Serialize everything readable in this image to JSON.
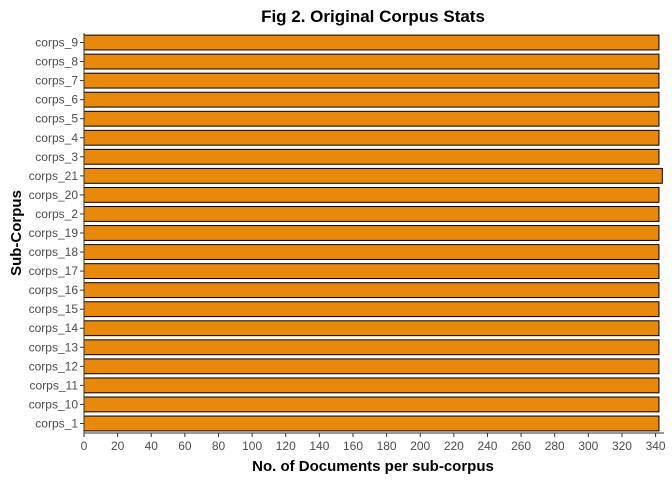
{
  "chart_data": {
    "type": "bar",
    "orientation": "horizontal",
    "title": "Fig 2. Original Corpus Stats",
    "xlabel": "No. of Documents per sub-corpus",
    "ylabel": "Sub-Corpus",
    "xlim": [
      0,
      345
    ],
    "xticks": [
      0,
      20,
      40,
      60,
      80,
      100,
      120,
      140,
      160,
      180,
      200,
      220,
      240,
      260,
      280,
      300,
      320,
      340
    ],
    "categories": [
      "corps_1",
      "corps_10",
      "corps_11",
      "corps_12",
      "corps_13",
      "corps_14",
      "corps_15",
      "corps_16",
      "corps_17",
      "corps_18",
      "corps_19",
      "corps_2",
      "corps_20",
      "corps_21",
      "corps_3",
      "corps_4",
      "corps_5",
      "corps_6",
      "corps_7",
      "corps_8",
      "corps_9"
    ],
    "values": [
      342,
      342,
      342,
      342,
      342,
      342,
      342,
      342,
      342,
      342,
      342,
      342,
      342,
      344,
      342,
      342,
      342,
      342,
      342,
      342,
      342
    ],
    "bar_color": "#E8890C",
    "grid": false,
    "legend": "none"
  }
}
